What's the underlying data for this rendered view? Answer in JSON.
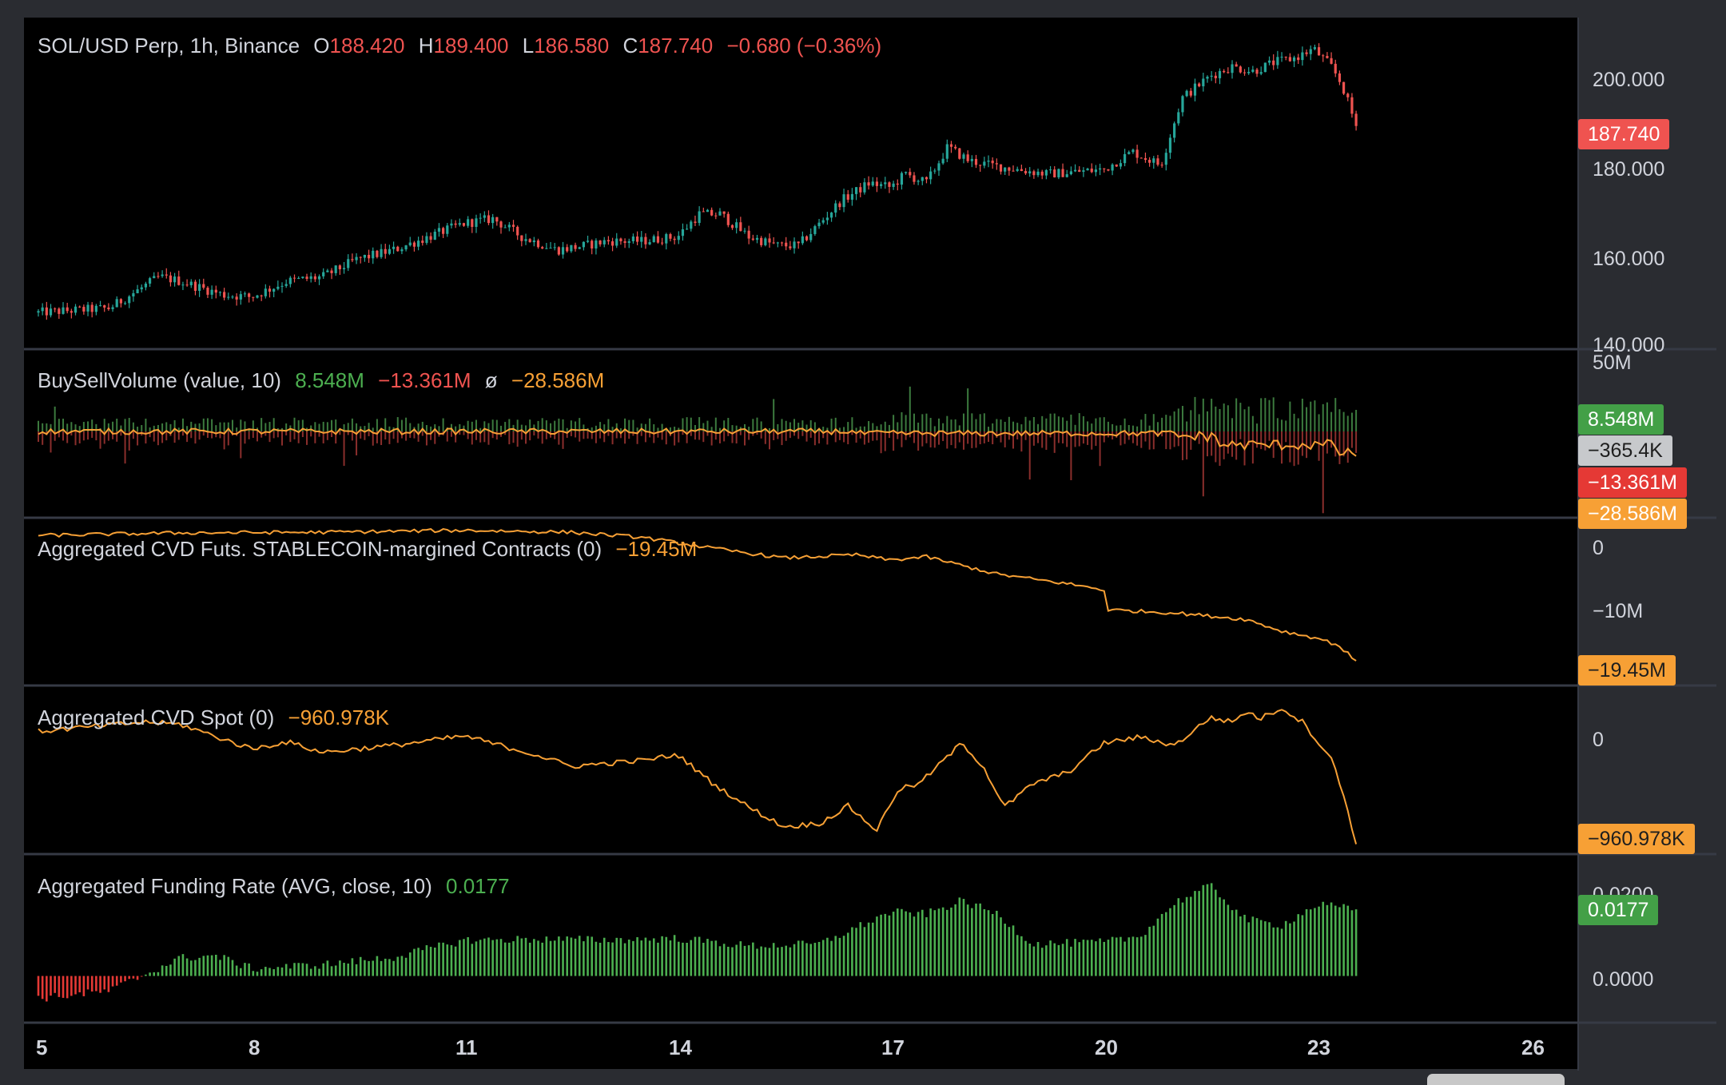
{
  "title_bar": {
    "symbol": "SOL/USD Perp, 1h, Binance",
    "o_label": "O",
    "o_value": "188.420",
    "h_label": "H",
    "h_value": "189.400",
    "l_label": "L",
    "l_value": "186.580",
    "c_label": "C",
    "c_value": "187.740",
    "change": "−0.680 (−0.36%)"
  },
  "panes": {
    "buysell": {
      "title": "BuySellVolume (value, 10)",
      "buy": "8.548M",
      "sell": "−13.361M",
      "sym": "ø",
      "delta": "−28.586M"
    },
    "cvd_futs": {
      "title": "Aggregated CVD Futs. STABLECOIN-margined Contracts (0)",
      "value": "−19.45M"
    },
    "cvd_spot": {
      "title": "Aggregated CVD Spot (0)",
      "value": "−960.978K"
    },
    "funding": {
      "title": "Aggregated Funding Rate (AVG, close, 10)",
      "value": "0.0177"
    }
  },
  "price_axis": {
    "ticks": [
      "200.000",
      "180.000",
      "160.000",
      "140.000"
    ],
    "last_price": "187.740"
  },
  "volume_axis": {
    "top_label": "50M",
    "badges": [
      "8.548M",
      "−365.4K",
      "−13.361M",
      "−28.586M"
    ]
  },
  "cvd_futs_axis": {
    "ticks": [
      "0",
      "−10M"
    ],
    "badge": "−19.45M"
  },
  "cvd_spot_axis": {
    "ticks": [
      "0"
    ],
    "badge": "−960.978K"
  },
  "funding_axis": {
    "ticks": [
      "0.0000"
    ],
    "badge": "0.0177",
    "hidden_tick": "0.0200"
  },
  "time_axis": {
    "labels": [
      "5",
      "8",
      "11",
      "14",
      "17",
      "20",
      "23",
      "26"
    ]
  },
  "colors": {
    "up": "#26a69a",
    "down": "#ef5350",
    "orange": "#f7a035",
    "green_badge": "#43a047",
    "red_badge": "#e53935",
    "grey_badge": "#c7c9cc",
    "funding_pos": "#4caf50",
    "funding_neg": "#e53935",
    "bg": "#000000",
    "frame": "#2a2c31"
  },
  "chart_data": [
    {
      "type": "candlestick",
      "title": "SOL/USD Perp, 1h, Binance",
      "x_label_days": [
        5,
        8,
        11,
        14,
        17,
        20,
        23,
        26
      ],
      "ylim": [
        138,
        212
      ],
      "close_path": {
        "day": [
          5.0,
          6.0,
          6.7,
          7.0,
          7.6,
          8.0,
          8.5,
          9.0,
          9.5,
          10.0,
          10.5,
          11.0,
          11.4,
          11.8,
          12.3,
          12.7,
          13.0,
          13.5,
          14.0,
          14.3,
          14.6,
          15.0,
          15.4,
          15.7,
          16.0,
          16.3,
          16.7,
          17.0,
          17.2,
          17.5,
          17.8,
          18.1,
          18.4,
          18.8,
          19.2,
          19.6,
          20.0,
          20.4,
          20.8,
          21.1,
          21.5,
          21.8,
          22.1,
          22.4,
          22.7,
          22.95,
          23.2,
          23.35,
          23.55
        ],
        "close": [
          146,
          147,
          154,
          153,
          150,
          149.5,
          153,
          154,
          158,
          160,
          163,
          166,
          167,
          163,
          160,
          161,
          162,
          162,
          163,
          168,
          168,
          163,
          161,
          161,
          166,
          171,
          175,
          174,
          177,
          175,
          183,
          180,
          179,
          178,
          177,
          177.5,
          178,
          182,
          179,
          194,
          199,
          201,
          200,
          202,
          203,
          205,
          201,
          197,
          187.74
        ]
      }
    },
    {
      "type": "bar+line",
      "title": "BuySellVolume (value, 10)",
      "series": [
        {
          "name": "buy volume",
          "last": 8.548
        },
        {
          "name": "sell volume",
          "last": -13.361
        },
        {
          "name": "delta line",
          "last": -28.586
        }
      ],
      "units": "M",
      "ylim": [
        -50,
        50
      ]
    },
    {
      "type": "line",
      "title": "Aggregated CVD Futs. STABLECOIN-margined Contracts (0)",
      "units": "M",
      "x": [
        5,
        7,
        9,
        11,
        12.5,
        13.5,
        14.5,
        15.5,
        16.5,
        17.0,
        17.5,
        18.5,
        19.5,
        20.0,
        20.05,
        21.0,
        22.0,
        22.5,
        23.0,
        23.3,
        23.55
      ],
      "y": [
        0.0,
        0.4,
        0.5,
        0.8,
        0.5,
        -0.3,
        -2.0,
        -3.5,
        -3.0,
        -3.8,
        -3.3,
        -6.0,
        -7.5,
        -8.4,
        -11.5,
        -12.0,
        -13.0,
        -14.8,
        -15.9,
        -17.0,
        -19.45
      ],
      "ylim": [
        -23,
        2.5
      ]
    },
    {
      "type": "line",
      "title": "Aggregated CVD Spot (0)",
      "units": "K",
      "x": [
        5,
        6.5,
        7.0,
        8.0,
        8.5,
        9.0,
        10.0,
        11.0,
        12.0,
        12.5,
        13.5,
        14.0,
        14.5,
        15.0,
        15.5,
        16.0,
        16.4,
        16.8,
        17.1,
        17.4,
        18.0,
        18.3,
        18.6,
        19.0,
        19.5,
        20.0,
        20.5,
        21.0,
        21.5,
        21.8,
        22.0,
        22.2,
        22.5,
        22.8,
        23.0,
        23.2,
        23.4,
        23.55
      ],
      "y": [
        0,
        80,
        60,
        -150,
        -90,
        -180,
        -120,
        -40,
        -200,
        -300,
        -250,
        -200,
        -450,
        -650,
        -820,
        -790,
        -640,
        -850,
        -500,
        -450,
        -100,
        -300,
        -650,
        -450,
        -350,
        -100,
        -50,
        -120,
        120,
        80,
        170,
        110,
        200,
        80,
        -80,
        -230,
        -600,
        -960.978
      ],
      "ylim": [
        -1040,
        380
      ]
    },
    {
      "type": "bar",
      "title": "Aggregated Funding Rate (AVG, close, 10)",
      "x": [
        5,
        6,
        7,
        7.5,
        8,
        9,
        10,
        11,
        12,
        13,
        14,
        15,
        16,
        17,
        17.5,
        18,
        18.5,
        19,
        20,
        20.5,
        21,
        21.5,
        22,
        22.5,
        23,
        23.55
      ],
      "y": [
        -0.006,
        -0.004,
        0.0048,
        0.0054,
        0.002,
        0.003,
        0.005,
        0.0095,
        0.0098,
        0.0096,
        0.01,
        0.008,
        0.0085,
        0.017,
        0.0165,
        0.02,
        0.0165,
        0.0085,
        0.009,
        0.0105,
        0.0195,
        0.024,
        0.015,
        0.0135,
        0.019,
        0.0177
      ],
      "ylim": [
        -0.012,
        0.032
      ]
    }
  ]
}
